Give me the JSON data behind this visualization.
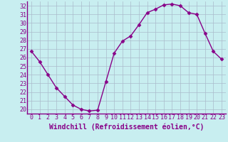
{
  "x": [
    0,
    1,
    2,
    3,
    4,
    5,
    6,
    7,
    8,
    9,
    10,
    11,
    12,
    13,
    14,
    15,
    16,
    17,
    18,
    19,
    20,
    21,
    22,
    23
  ],
  "y": [
    26.7,
    25.5,
    24.0,
    22.5,
    21.5,
    20.5,
    20.0,
    19.8,
    19.9,
    23.2,
    26.5,
    27.9,
    28.5,
    29.8,
    31.2,
    31.6,
    32.1,
    32.2,
    32.0,
    31.2,
    31.0,
    28.8,
    26.7,
    25.8
  ],
  "line_color": "#880088",
  "marker": "D",
  "marker_size": 2.5,
  "bg_color": "#c8eef0",
  "grid_color": "#aabbcc",
  "xlabel": "Windchill (Refroidissement éolien,°C)",
  "xlabel_fontsize": 7,
  "tick_fontsize": 6,
  "ylim": [
    19.5,
    32.5
  ],
  "xlim": [
    -0.5,
    23.5
  ],
  "yticks": [
    20,
    21,
    22,
    23,
    24,
    25,
    26,
    27,
    28,
    29,
    30,
    31,
    32
  ],
  "xticks": [
    0,
    1,
    2,
    3,
    4,
    5,
    6,
    7,
    8,
    9,
    10,
    11,
    12,
    13,
    14,
    15,
    16,
    17,
    18,
    19,
    20,
    21,
    22,
    23
  ],
  "line_width": 1.0,
  "spine_color": "#880088"
}
